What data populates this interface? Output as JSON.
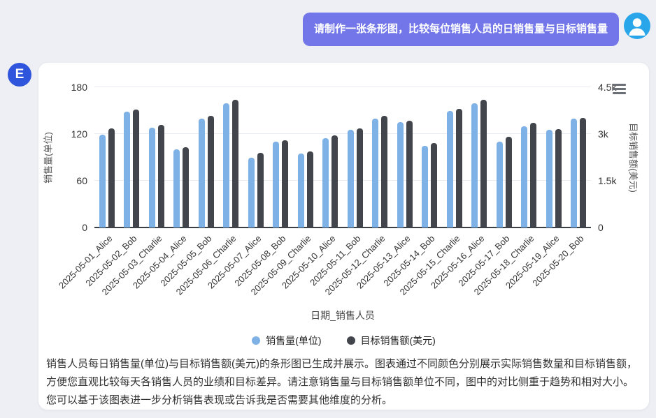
{
  "page": {
    "background": "#edeff4"
  },
  "user_message": {
    "text": "请制作一张条形图，比较每位销售人员的日销售量与目标销售量"
  },
  "assistant": {
    "avatar_letter": "E"
  },
  "colors": {
    "bubble": "#7376e8",
    "user_avatar": "#29a6e9",
    "assistant_avatar": "#2f55dd",
    "sales_bar": "#7eb1e6",
    "target_bar": "#42464c"
  },
  "chart_data": {
    "type": "bar",
    "title": "",
    "xlabel": "日期_销售人员",
    "categories": [
      "2025-05-01_Alice",
      "2025-05-02_Bob",
      "2025-05-03_Charlie",
      "2025-05-04_Alice",
      "2025-05-05_Bob",
      "2025-05-06_Charlie",
      "2025-05-07_Alice",
      "2025-05-08_Bob",
      "2025-05-09_Charlie",
      "2025-05-10_Alice",
      "2025-05-11_Bob",
      "2025-05-12_Charlie",
      "2025-05-13_Alice",
      "2025-05-14_Bob",
      "2025-05-15_Charlie",
      "2025-05-16_Alice",
      "2025-05-17_Bob",
      "2025-05-18_Charlie",
      "2025-05-19_Alice",
      "2025-05-20_Bob"
    ],
    "series": [
      {
        "name": "销售量(单位)",
        "axis": "left",
        "color": "#7eb1e6",
        "values": [
          119,
          149,
          128,
          100,
          140,
          159,
          90,
          110,
          95,
          115,
          125,
          140,
          135,
          105,
          150,
          159,
          110,
          130,
          125,
          140
        ]
      },
      {
        "name": "目标销售额(美元)",
        "axis": "right",
        "color": "#42464c",
        "values": [
          3175,
          3775,
          3300,
          2575,
          3575,
          4100,
          2400,
          2800,
          2450,
          2950,
          3175,
          3575,
          3425,
          2700,
          3800,
          4100,
          2900,
          3350,
          3150,
          3525
        ]
      }
    ],
    "left_axis": {
      "label": "销售量(单位)",
      "ticks": [
        "0",
        "60",
        "120",
        "180"
      ],
      "max": 180
    },
    "right_axis": {
      "label": "目标销售额(美元)",
      "ticks": [
        "0",
        "1.5k",
        "3k",
        "4.5k"
      ],
      "max": 4500
    },
    "legend": [
      "销售量(单位)",
      "目标销售额(美元)"
    ],
    "legend_position": "bottom",
    "grid": true
  },
  "analysis_text": "销售人员每日销售量(单位)与目标销售额(美元)的条形图已生成并展示。图表通过不同颜色分别展示实际销售数量和目标销售额，方便您直观比较每天各销售人员的业绩和目标差异。请注意销售量与目标销售额单位不同，图中的对比侧重于趋势和相对大小。您可以基于该图表进一步分析销售表现或告诉我是否需要其他维度的分析。"
}
